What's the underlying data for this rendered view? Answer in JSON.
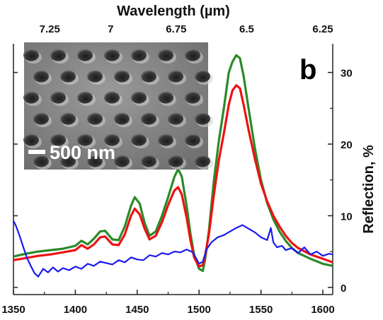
{
  "chart_data": {
    "type": "line",
    "panel_label": "b",
    "x_bottom": {
      "ticks": [
        1350,
        1400,
        1450,
        1500,
        1550,
        1600
      ],
      "tick_labels": [
        "1350",
        "1400",
        "1450",
        "1500",
        "1550",
        "1600"
      ],
      "range": [
        1350,
        1608
      ]
    },
    "x_top": {
      "label": "Wavelength (µm)",
      "ticks_wavelength_um": [
        7.25,
        7,
        6.75,
        6.5,
        6.25
      ],
      "tick_labels": [
        "7.25",
        "7",
        "6.75",
        "6.5",
        "6.25"
      ]
    },
    "y_right": {
      "label": "Reflection, %",
      "ticks": [
        0,
        10,
        20,
        30
      ],
      "tick_labels": [
        "0",
        "10",
        "20",
        "30"
      ],
      "range": [
        -1,
        34
      ]
    },
    "inset": {
      "type": "sem-image",
      "scale_bar_label": "500 nm"
    },
    "series": [
      {
        "color": "#2a8a2a",
        "x": [
          1350,
          1360,
          1370,
          1380,
          1390,
          1400,
          1405,
          1410,
          1415,
          1420,
          1424,
          1430,
          1435,
          1440,
          1445,
          1448,
          1452,
          1456,
          1460,
          1465,
          1470,
          1475,
          1480,
          1483,
          1486,
          1490,
          1493,
          1496,
          1500,
          1503,
          1505,
          1508,
          1512,
          1516,
          1520,
          1524,
          1527,
          1530,
          1533,
          1536,
          1540,
          1545,
          1550,
          1555,
          1560,
          1565,
          1570,
          1575,
          1580,
          1590,
          1600,
          1608
        ],
        "y": [
          4.3,
          4.7,
          5.0,
          5.2,
          5.4,
          5.8,
          6.5,
          6.0,
          6.8,
          7.8,
          7.9,
          6.7,
          6.6,
          8.5,
          11.4,
          12.6,
          11.7,
          9.0,
          7.2,
          7.8,
          10.0,
          12.6,
          15.4,
          16.5,
          15.5,
          11.3,
          7.5,
          4.5,
          2.6,
          2.3,
          4.0,
          8.0,
          15.0,
          20.5,
          25.0,
          30.0,
          31.5,
          32.4,
          32.0,
          29.5,
          25.0,
          19.5,
          15.0,
          11.8,
          9.5,
          7.8,
          6.5,
          5.5,
          4.8,
          4.0,
          3.3,
          3.0
        ]
      },
      {
        "color": "#ee1111",
        "x": [
          1350,
          1360,
          1370,
          1380,
          1390,
          1400,
          1405,
          1410,
          1415,
          1420,
          1424,
          1430,
          1435,
          1440,
          1445,
          1448,
          1452,
          1456,
          1460,
          1465,
          1470,
          1475,
          1480,
          1483,
          1486,
          1490,
          1493,
          1496,
          1500,
          1503,
          1505,
          1508,
          1512,
          1516,
          1520,
          1524,
          1527,
          1530,
          1533,
          1536,
          1540,
          1545,
          1550,
          1555,
          1560,
          1565,
          1570,
          1575,
          1580,
          1590,
          1600,
          1608
        ],
        "y": [
          3.8,
          4.1,
          4.4,
          4.6,
          4.9,
          5.2,
          5.9,
          5.4,
          6.0,
          7.0,
          7.1,
          6.0,
          5.9,
          7.4,
          10.0,
          11.0,
          10.2,
          8.2,
          6.7,
          7.2,
          9.1,
          11.5,
          13.5,
          14.0,
          13.0,
          9.7,
          6.6,
          4.2,
          2.9,
          3.1,
          4.5,
          7.5,
          13.0,
          17.8,
          21.5,
          25.5,
          27.5,
          28.2,
          27.8,
          25.5,
          22.0,
          18.0,
          14.5,
          12.0,
          10.0,
          8.5,
          7.2,
          6.2,
          5.5,
          4.6,
          4.0,
          3.5
        ]
      },
      {
        "color": "#1a1aee",
        "x": [
          1350,
          1352,
          1355,
          1358,
          1361,
          1364,
          1367,
          1370,
          1374,
          1378,
          1382,
          1386,
          1390,
          1395,
          1400,
          1405,
          1410,
          1415,
          1420,
          1425,
          1430,
          1435,
          1440,
          1445,
          1450,
          1455,
          1460,
          1465,
          1470,
          1475,
          1480,
          1485,
          1490,
          1495,
          1500,
          1503,
          1506,
          1510,
          1515,
          1520,
          1525,
          1530,
          1535,
          1540,
          1545,
          1550,
          1555,
          1558,
          1560,
          1563,
          1567,
          1570,
          1575,
          1580,
          1585,
          1590,
          1595,
          1600,
          1605,
          1608
        ],
        "y": [
          9.3,
          8.6,
          7.2,
          5.6,
          4.1,
          3.0,
          2.0,
          1.5,
          2.6,
          2.1,
          2.8,
          2.2,
          2.7,
          2.4,
          2.9,
          2.6,
          3.3,
          3.0,
          3.6,
          3.4,
          3.2,
          3.8,
          3.5,
          4.2,
          3.9,
          3.8,
          4.5,
          4.3,
          4.8,
          4.6,
          5.0,
          4.9,
          5.3,
          4.9,
          3.3,
          3.6,
          5.3,
          6.3,
          7.0,
          7.3,
          7.8,
          8.3,
          8.7,
          8.2,
          7.7,
          7.0,
          6.6,
          8.3,
          6.3,
          5.6,
          5.8,
          5.2,
          5.5,
          4.8,
          5.6,
          4.6,
          5.0,
          4.4,
          4.7,
          4.6
        ]
      }
    ]
  }
}
